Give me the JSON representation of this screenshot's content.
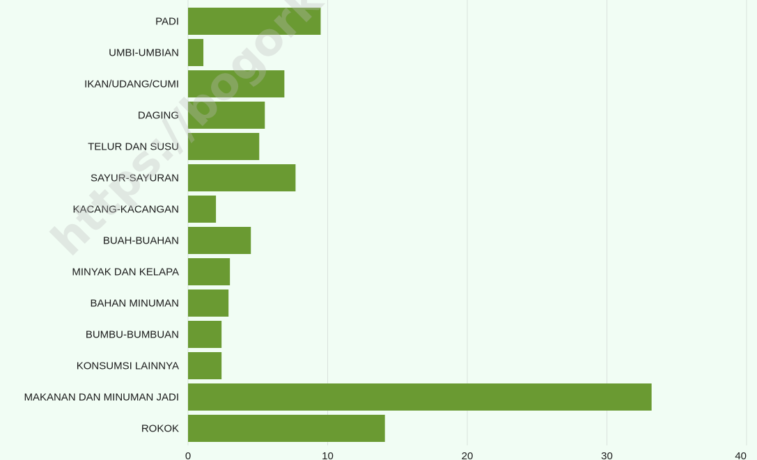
{
  "watermark": "https://bogorkab.bps.go.id",
  "colors": {
    "bar": "#6a9a32",
    "grid": "#d9e2dc",
    "background": "#f1fdf4"
  },
  "chart_data": {
    "type": "bar",
    "orientation": "horizontal",
    "categories": [
      "PADI",
      "UMBI-UMBIAN",
      "IKAN/UDANG/CUMI",
      "DAGING",
      "TELUR DAN SUSU",
      "SAYUR-SAYURAN",
      "KACANG-KACANGAN",
      "BUAH-BUAHAN",
      "MINYAK DAN KELAPA",
      "BAHAN MINUMAN",
      "BUMBU-BUMBUAN",
      "KONSUMSI LAINNYA",
      "MAKANAN DAN MINUMAN JADI",
      "ROKOK"
    ],
    "values": [
      9.5,
      1.1,
      6.9,
      5.5,
      5.1,
      7.7,
      2.0,
      4.5,
      3.0,
      2.9,
      2.4,
      2.4,
      33.2,
      14.1
    ],
    "xlim": [
      0,
      40
    ],
    "xticks": [
      "0",
      "10",
      "20",
      "30",
      "40"
    ],
    "grid": true,
    "title": "",
    "xlabel": "",
    "ylabel": ""
  }
}
